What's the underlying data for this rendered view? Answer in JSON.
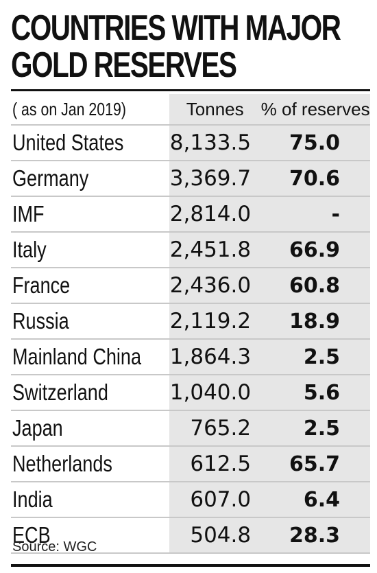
{
  "chart_data": {
    "type": "table",
    "title": [
      "COUNTRIES WITH MAJOR",
      "GOLD RESERVES"
    ],
    "date_label": "( as on Jan 2019)",
    "columns": [
      "Tonnes",
      "% of reserves"
    ],
    "rows": [
      {
        "name": "United States",
        "tonnes": "8,133.5",
        "pct": "75.0"
      },
      {
        "name": "Germany",
        "tonnes": "3,369.7",
        "pct": "70.6"
      },
      {
        "name": "IMF",
        "tonnes": "2,814.0",
        "pct": "-"
      },
      {
        "name": "Italy",
        "tonnes": "2,451.8",
        "pct": "66.9"
      },
      {
        "name": "France",
        "tonnes": "2,436.0",
        "pct": "60.8"
      },
      {
        "name": "Russia",
        "tonnes": "2,119.2",
        "pct": "18.9"
      },
      {
        "name": "Mainland China",
        "tonnes": "1,864.3",
        "pct": "2.5"
      },
      {
        "name": "Switzerland",
        "tonnes": "1,040.0",
        "pct": "5.6"
      },
      {
        "name": "Japan",
        "tonnes": "765.2",
        "pct": "2.5"
      },
      {
        "name": "Netherlands",
        "tonnes": "612.5",
        "pct": "65.7"
      },
      {
        "name": "India",
        "tonnes": "607.0",
        "pct": "6.4"
      },
      {
        "name": "ECB",
        "tonnes": "504.8",
        "pct": "28.3"
      }
    ],
    "source": "Source: WGC"
  }
}
